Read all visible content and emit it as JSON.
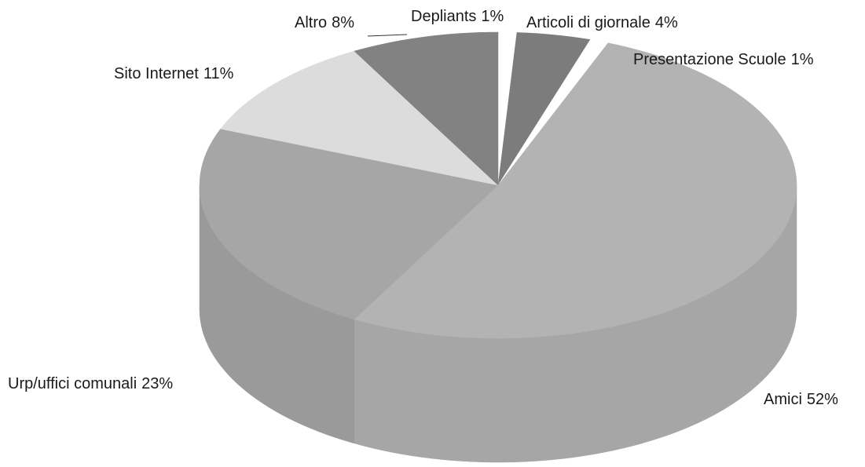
{
  "chart_data": {
    "type": "pie",
    "categories": [
      "Depliants",
      "Articoli di giornale",
      "Presentazione Scuole",
      "Amici",
      "Urp/uffici comunali",
      "Sito Internet",
      "Altro"
    ],
    "values": [
      1,
      4,
      1,
      52,
      23,
      11,
      8
    ],
    "value_labels": [
      "1%",
      "4%",
      "1%",
      "52%",
      "23%",
      "11%",
      "8%"
    ],
    "colors": [
      "#ffffff",
      "#7c7c7c",
      "#ffffff",
      "#b3b3b3",
      "#a6a6a6",
      "#dcdcdc",
      "#828282"
    ],
    "three_d": true
  }
}
